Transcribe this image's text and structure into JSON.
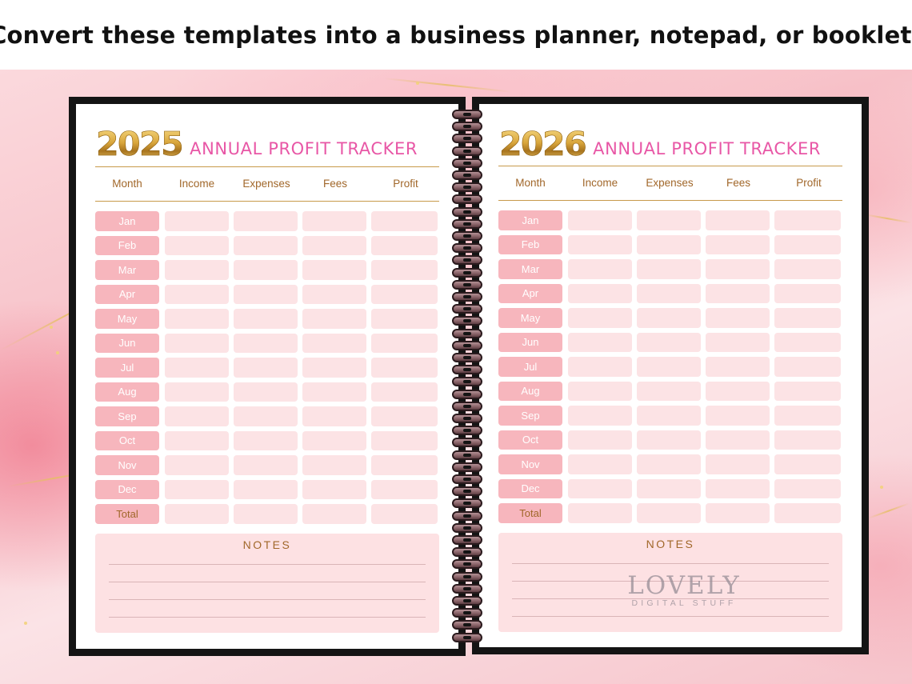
{
  "banner": {
    "text": "Convert these templates into a business planner, notepad, or booklet!"
  },
  "pages": [
    {
      "year": "2025",
      "title": "ANNUAL PROFIT TRACKER",
      "columns": [
        "Month",
        "Income",
        "Expenses",
        "Fees",
        "Profit"
      ],
      "months": [
        "Jan",
        "Feb",
        "Mar",
        "Apr",
        "May",
        "Jun",
        "Jul",
        "Aug",
        "Sep",
        "Oct",
        "Nov",
        "Dec"
      ],
      "total_label": "Total",
      "notes_title": "NOTES"
    },
    {
      "year": "2026",
      "title": "ANNUAL PROFIT TRACKER",
      "columns": [
        "Month",
        "Income",
        "Expenses",
        "Fees",
        "Profit"
      ],
      "months": [
        "Jan",
        "Feb",
        "Mar",
        "Apr",
        "May",
        "Jun",
        "Jul",
        "Aug",
        "Sep",
        "Oct",
        "Nov",
        "Dec"
      ],
      "total_label": "Total",
      "notes_title": "NOTES"
    }
  ],
  "watermark": {
    "main": "LOVELY",
    "sub": "DIGITAL STUFF"
  },
  "colors": {
    "title_pink": "#e857a6",
    "gold_text": "#a1672a",
    "month_cell": "#f7b6bd",
    "data_cell": "#fce3e5",
    "notes_bg": "#fde1e3"
  }
}
